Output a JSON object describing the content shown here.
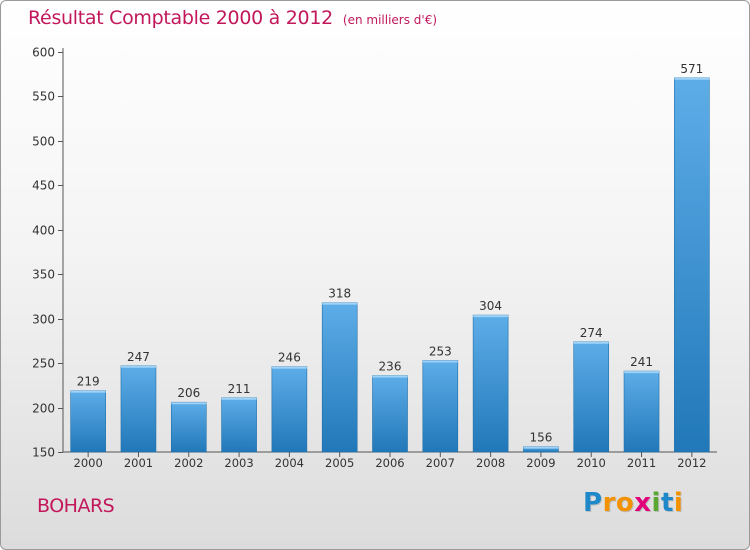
{
  "chart_data": {
    "type": "bar",
    "title": "Résultat Comptable 2000 à 2012",
    "subtitle": "(en milliers d'€)",
    "categories": [
      "2000",
      "2001",
      "2002",
      "2003",
      "2004",
      "2005",
      "2006",
      "2007",
      "2008",
      "2009",
      "2010",
      "2011",
      "2012"
    ],
    "values": [
      219,
      247,
      206,
      211,
      246,
      318,
      236,
      253,
      304,
      156,
      274,
      241,
      571
    ],
    "ylim": [
      150,
      600
    ],
    "yticks": [
      150,
      200,
      250,
      300,
      350,
      400,
      450,
      500,
      550,
      600
    ],
    "xlabel": "",
    "ylabel": "",
    "grid": false,
    "colors": {
      "bar_top": "#5dade8",
      "bar_bottom": "#2178b8",
      "title": "#c2185b",
      "label": "#333333"
    }
  },
  "location": "BOHARS",
  "logo": {
    "letters": [
      "P",
      "r",
      "o",
      "x",
      "i",
      "t",
      "i"
    ],
    "colors": [
      "#1e88c9",
      "#f39200",
      "#f39200",
      "#e2007a",
      "#5aa832",
      "#1e88c9",
      "#f39200"
    ]
  }
}
